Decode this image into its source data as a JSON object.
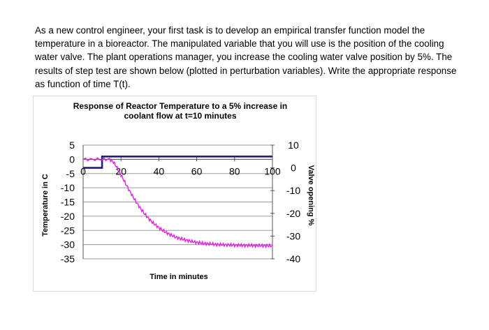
{
  "problem_text": "As a new control engineer, your first task is to develop an empirical transfer function model the temperature in a bioreactor. The manipulated variable that you will use is the position of the cooling water valve. The plant operations manager, you increase the cooling water valve position by 5%. The results of step test are shown below (plotted in perturbation variables). Write the appropriate response as function of time T(t).",
  "chart_data": {
    "type": "line",
    "title_lines": [
      "Response of Reactor Temperature to a 5% increase in",
      "coolant flow at t=10 minutes"
    ],
    "xlabel": "Time in minutes",
    "ylabel": "Temperature in C",
    "y2label": "Valve opening %",
    "xlim": [
      0,
      100
    ],
    "ylim": [
      -35,
      5
    ],
    "y2lim": [
      -40,
      10
    ],
    "x_ticks": [
      "0",
      "20",
      "40",
      "60",
      "80",
      "100"
    ],
    "y_ticks": [
      "5",
      "0",
      "-5",
      "-10",
      "-15",
      "-20",
      "-25",
      "-30",
      "-35"
    ],
    "y2_ticks": [
      "10",
      "0",
      "-10",
      "-20",
      "-30",
      "-40"
    ],
    "grid": true,
    "series": [
      {
        "name": "Valve opening",
        "axis": "right",
        "color": "#1f1f7a",
        "x": [
          0,
          10,
          10,
          100
        ],
        "values": [
          0,
          0,
          5,
          5
        ]
      },
      {
        "name": "Temperature",
        "axis": "left",
        "color": "#e020e0",
        "x": [
          0,
          5,
          10,
          14,
          16,
          18,
          20,
          22,
          24,
          26,
          28,
          30,
          32,
          34,
          36,
          38,
          40,
          42,
          44,
          46,
          48,
          50,
          52,
          54,
          56,
          58,
          60,
          62,
          64,
          66,
          68,
          70,
          72,
          74,
          76,
          78,
          80,
          82,
          84,
          86,
          88,
          90,
          92,
          94,
          96,
          98,
          100
        ],
        "values": [
          0,
          0,
          0,
          0,
          -1,
          -3,
          -5.5,
          -8,
          -10.5,
          -12.8,
          -15,
          -17,
          -18.8,
          -20.4,
          -21.8,
          -23,
          -24,
          -25,
          -25.8,
          -26.5,
          -27.1,
          -27.6,
          -28,
          -28.4,
          -28.7,
          -29,
          -29.2,
          -29.4,
          -29.6,
          -29.7,
          -29.8,
          -29.9,
          -30,
          -30.05,
          -30.1,
          -30.15,
          -30.2,
          -30.2,
          -30.25,
          -30.3,
          -30.3,
          -30.3,
          -30.35,
          -30.35,
          -30.35,
          -30.4,
          -30.4
        ]
      }
    ]
  }
}
